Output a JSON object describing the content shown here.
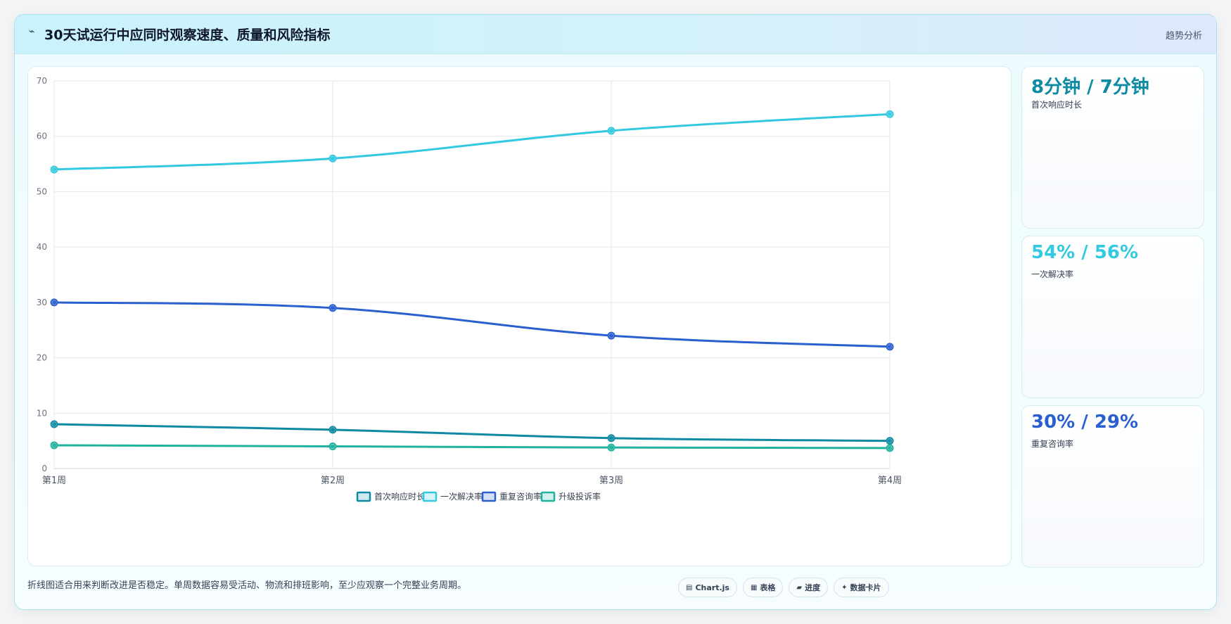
{
  "header": {
    "icon": "trend-icon",
    "title": "30天试运行中应同时观察速度、质量和风险指标",
    "action_label": "趋势分析"
  },
  "chart_data": {
    "type": "line",
    "categories": [
      "第1周",
      "第2周",
      "第3周",
      "第4周"
    ],
    "series": [
      {
        "name": "首次响应时长",
        "values": [
          8,
          7,
          5.5,
          5
        ],
        "color": "#0e8aa3"
      },
      {
        "name": "一次解决率",
        "values": [
          54,
          56,
          61,
          64
        ],
        "color": "#33c9e0"
      },
      {
        "name": "重复咨询率",
        "values": [
          30,
          29,
          24,
          22
        ],
        "color": "#2a5fcf"
      },
      {
        "name": "升级投诉率",
        "values": [
          4.2,
          4,
          3.8,
          3.7
        ],
        "color": "#1fb39f"
      }
    ],
    "ylim": [
      0,
      70
    ],
    "yticks": [
      "0",
      "10",
      "20",
      "30",
      "40",
      "50",
      "60",
      "70"
    ],
    "grid": true,
    "legend_position": "bottom",
    "xlabel": "",
    "ylabel": ""
  },
  "kpis": [
    {
      "value": "8分钟 / 7分钟",
      "label": "首次响应时长",
      "color": "#0e8aa3"
    },
    {
      "value": "54% / 56%",
      "label": "一次解决率",
      "color": "#33c9e0"
    },
    {
      "value": "30% / 29%",
      "label": "重复咨询率",
      "color": "#2a5fcf"
    }
  ],
  "footer": {
    "note": "折线图适合用来判断改进是否稳定。单周数据容易受活动、物流和排班影响，至少应观察一个完整业务周期。",
    "badges": [
      {
        "icon": "chart-icon",
        "label": "Chart.js"
      },
      {
        "icon": "table-icon",
        "label": "表格"
      },
      {
        "icon": "progress-icon",
        "label": "进度"
      },
      {
        "icon": "card-icon",
        "label": "数据卡片"
      }
    ]
  }
}
